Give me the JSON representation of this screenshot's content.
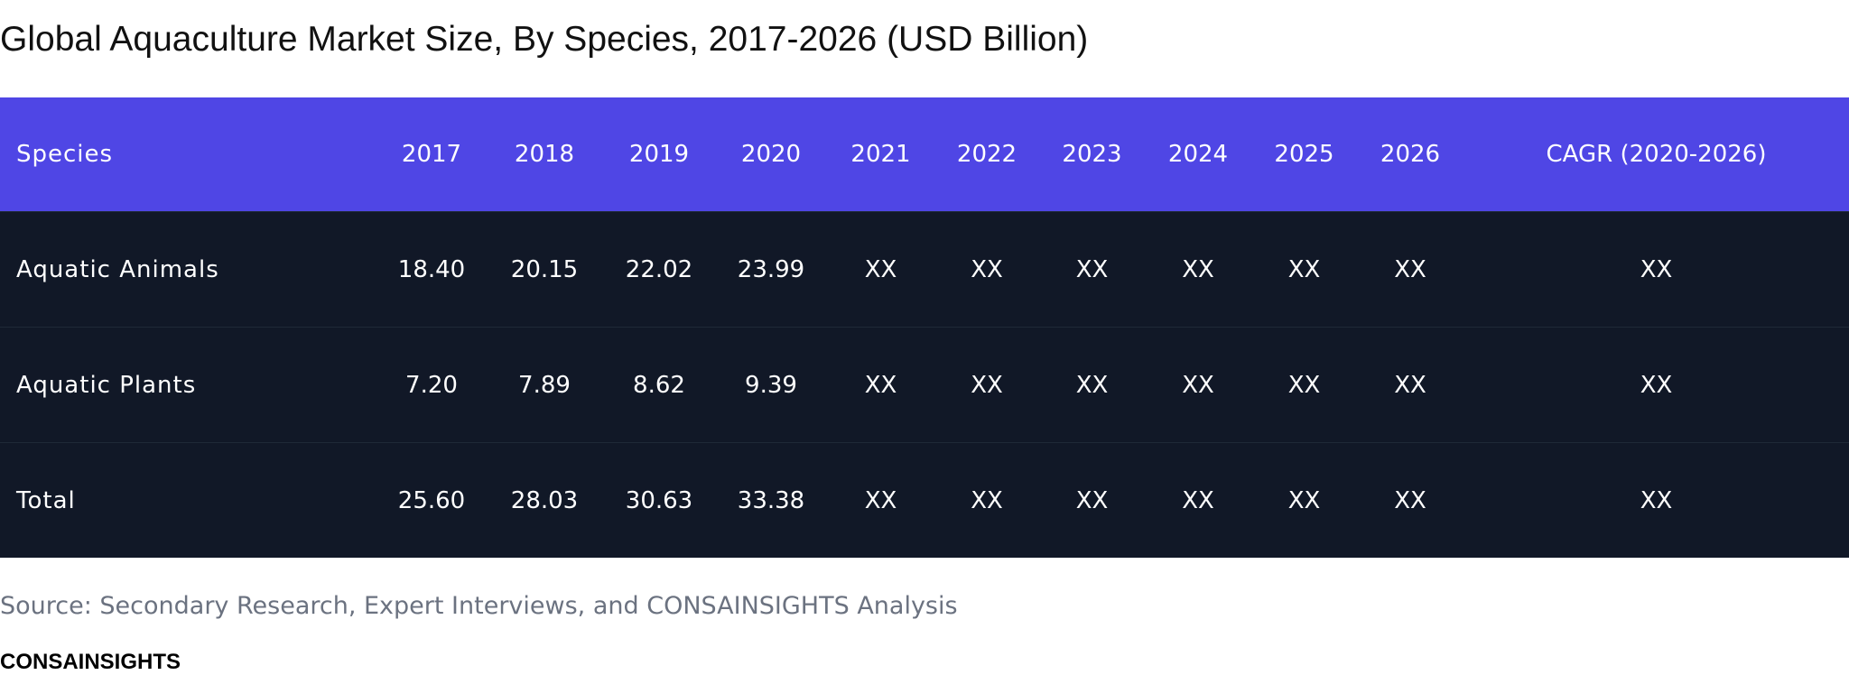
{
  "title": "Global Aquaculture Market Size, By Species, 2017-2026 (USD Billion)",
  "table": {
    "header": [
      "Species",
      "2017",
      "2018",
      "2019",
      "2020",
      "2021",
      "2022",
      "2023",
      "2024",
      "2025",
      "2026",
      "CAGR (2020-2026)"
    ],
    "rows": [
      [
        "Aquatic Animals",
        "18.40",
        "20.15",
        "22.02",
        "23.99",
        "XX",
        "XX",
        "XX",
        "XX",
        "XX",
        "XX",
        "XX"
      ],
      [
        "Aquatic Plants",
        "7.20",
        "7.89",
        "8.62",
        "9.39",
        "XX",
        "XX",
        "XX",
        "XX",
        "XX",
        "XX",
        "XX"
      ],
      [
        "Total",
        "25.60",
        "28.03",
        "30.63",
        "33.38",
        "XX",
        "XX",
        "XX",
        "XX",
        "XX",
        "XX",
        "XX"
      ]
    ]
  },
  "source": "Source: Secondary Research, Expert Interviews, and CONSAINSIGHTS Analysis",
  "brand": "CONSAINSIGHTS"
}
